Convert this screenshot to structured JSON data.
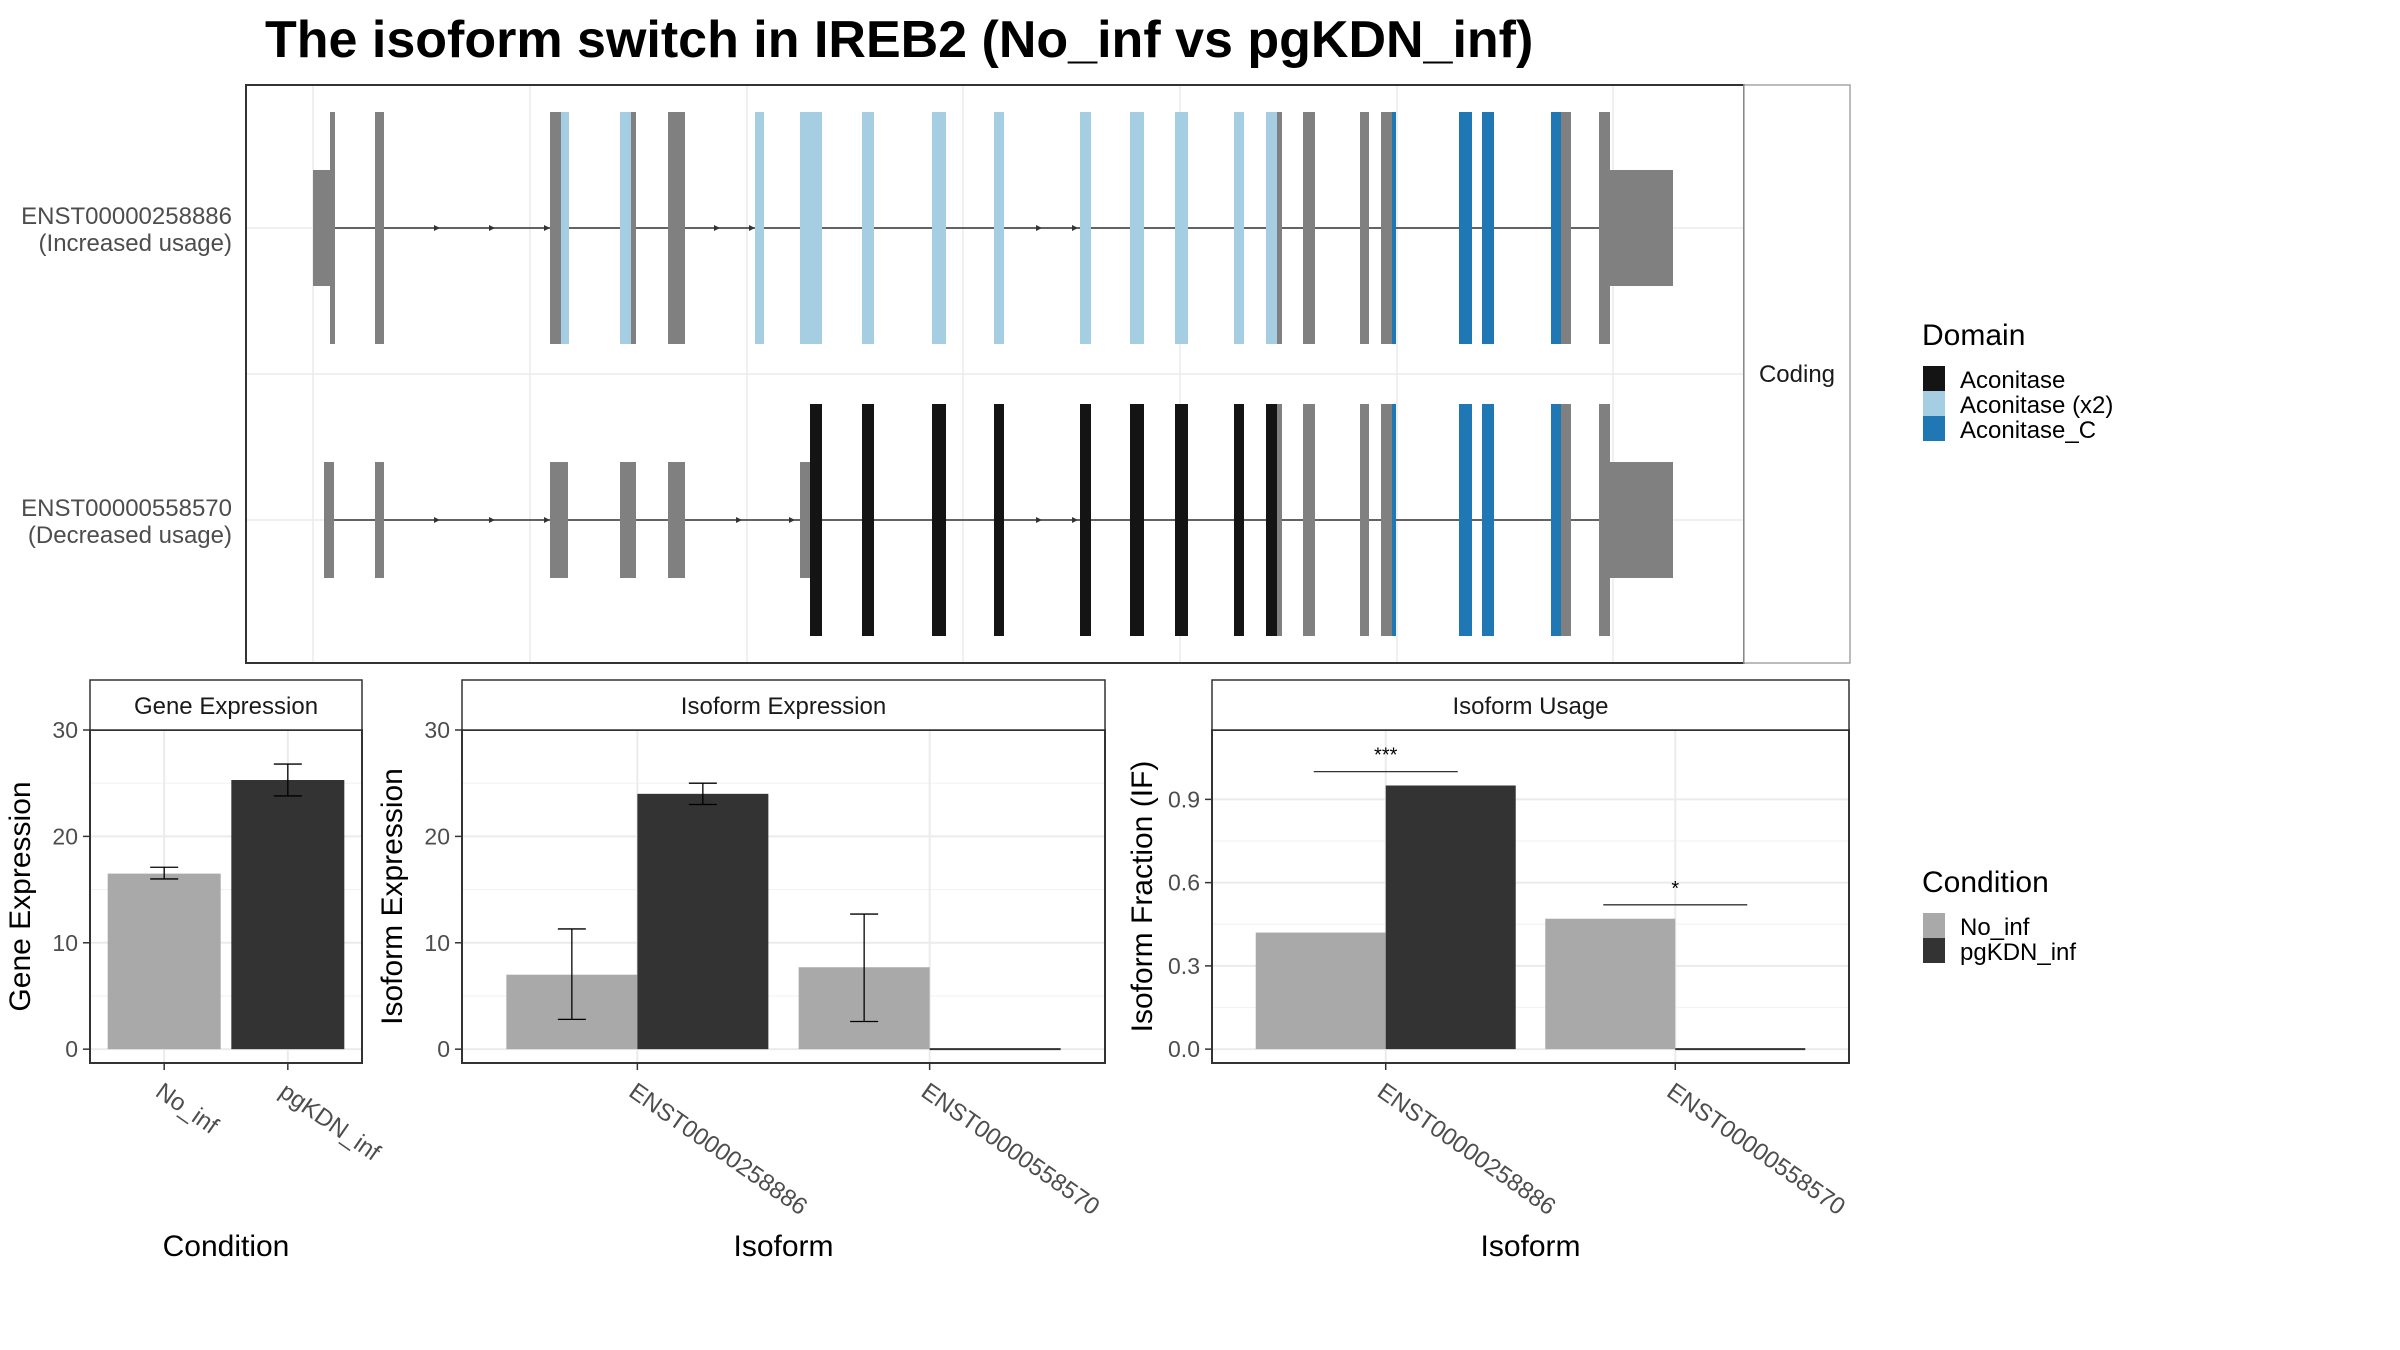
{
  "title": "The isoform switch in IREB2 (No_inf vs pgKDN_inf)",
  "colors": {
    "intron": "#333333",
    "noncoding": "#808080",
    "aconitase": "#141414",
    "aconitase_x2": "#A6CEE3",
    "aconitase_c": "#1F78B4",
    "no_inf": "#A9A9A9",
    "pgkdn_inf": "#333333",
    "grid": "#EBEBEB",
    "panel_border": "#333333",
    "strip_border": "#A6A6A6"
  },
  "structure": {
    "strip_label": "Coding",
    "isoforms": [
      {
        "id": "ENST00000258886",
        "usage": "(Increased usage)"
      },
      {
        "id": "ENST00000558570",
        "usage": "(Decreased usage)"
      }
    ]
  },
  "domain_legend": {
    "title": "Domain",
    "items": [
      {
        "label": "Aconitase",
        "color": "#141414"
      },
      {
        "label": "Aconitase (x2)",
        "color": "#A6CEE3"
      },
      {
        "label": "Aconitase_C",
        "color": "#1F78B4"
      }
    ]
  },
  "condition_legend": {
    "title": "Condition",
    "items": [
      {
        "label": "No_inf",
        "color": "#A9A9A9"
      },
      {
        "label": "pgKDN_inf",
        "color": "#333333"
      }
    ]
  },
  "chart_data": [
    {
      "type": "bar",
      "title": "Gene Expression",
      "xlabel": "Condition",
      "ylabel": "Gene Expression",
      "categories": [
        "No_inf",
        "pgKDN_inf"
      ],
      "values": [
        16.5,
        25.3
      ],
      "error_low": [
        16.0,
        23.8
      ],
      "error_high": [
        17.1,
        26.8
      ],
      "ylim": [
        -1.3,
        30.0
      ],
      "yticks": [
        0,
        10,
        20,
        30
      ],
      "grid": true
    },
    {
      "type": "bar",
      "title": "Isoform Expression",
      "xlabel": "Isoform",
      "ylabel": "Isoform Expression",
      "categories": [
        "ENST00000258886",
        "ENST00000558570"
      ],
      "series": [
        {
          "name": "No_inf",
          "values": [
            7.0,
            7.7
          ],
          "error_low": [
            2.8,
            2.6
          ],
          "error_high": [
            11.3,
            12.7
          ]
        },
        {
          "name": "pgKDN_inf",
          "values": [
            24.0,
            0.0
          ],
          "error_low": [
            23.0,
            0.0
          ],
          "error_high": [
            25.0,
            0.0
          ]
        }
      ],
      "ylim": [
        -1.3,
        30.0
      ],
      "yticks": [
        0,
        10,
        20,
        30
      ],
      "grid": true
    },
    {
      "type": "bar",
      "title": "Isoform Usage",
      "xlabel": "Isoform",
      "ylabel": "Isoform Fraction (IF)",
      "categories": [
        "ENST00000258886",
        "ENST00000558570"
      ],
      "series": [
        {
          "name": "No_inf",
          "values": [
            0.42,
            0.47
          ]
        },
        {
          "name": "pgKDN_inf",
          "values": [
            0.95,
            0.0
          ]
        }
      ],
      "significance": [
        {
          "category": "ENST00000258886",
          "label": "***",
          "y": 1.0
        },
        {
          "category": "ENST00000558570",
          "label": "*",
          "y": 0.52
        }
      ],
      "ylim": [
        -0.05,
        1.15
      ],
      "yticks": [
        0.0,
        0.3,
        0.6,
        0.9
      ],
      "grid": true
    }
  ]
}
